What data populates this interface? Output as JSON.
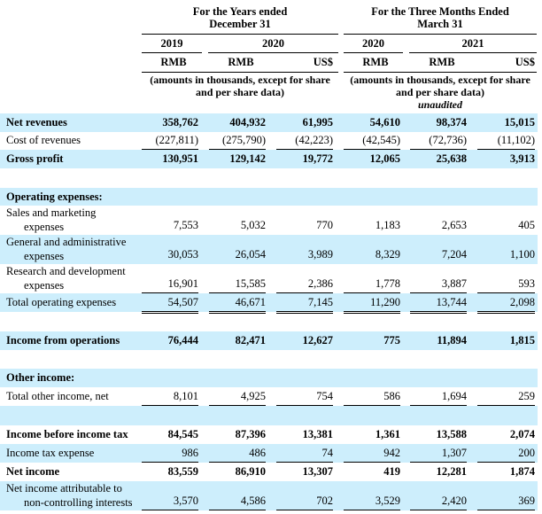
{
  "header": {
    "group_years": "For the Years ended December 31",
    "group_years_l1": "For the Years ended",
    "group_years_l2": "December 31",
    "group_quarter_l1": "For the Three Months Ended",
    "group_quarter_l2": "March 31",
    "years": [
      "2019",
      "2020",
      "2020",
      "2021"
    ],
    "currencies": [
      "RMB",
      "RMB",
      "US$",
      "RMB",
      "RMB",
      "US$"
    ],
    "note_l1": "(amounts in thousands, except for share",
    "note_l2": "and per share data)",
    "unaudited": "unaudited"
  },
  "colors": {
    "band": "#cdeefc"
  },
  "rows": [
    {
      "label": "Net revenues",
      "bold": true,
      "band": true,
      "values": [
        "358,762",
        "404,932",
        "61,995",
        "54,610",
        "98,374",
        "15,015"
      ]
    },
    {
      "label": "Cost of revenues",
      "values": [
        "(227,811)",
        "(275,790)",
        "(42,223)",
        "(42,545)",
        "(72,736)",
        "(11,102)"
      ]
    },
    {
      "label": "Gross profit",
      "bold": true,
      "band": true,
      "values": [
        "130,951",
        "129,142",
        "19,772",
        "12,065",
        "25,638",
        "3,913"
      ]
    },
    {
      "label": "Operating expenses:",
      "bold": true,
      "band": true,
      "values": []
    },
    {
      "label": "Sales and marketing",
      "label2": "expenses",
      "values": [
        "7,553",
        "5,032",
        "770",
        "1,183",
        "2,653",
        "405"
      ]
    },
    {
      "label": "General and administrative",
      "label2": "expenses",
      "band": true,
      "values": [
        "30,053",
        "26,054",
        "3,989",
        "8,329",
        "7,204",
        "1,100"
      ]
    },
    {
      "label": "Research and development",
      "label2": "expenses",
      "values": [
        "16,901",
        "15,585",
        "2,386",
        "1,778",
        "3,887",
        "593"
      ]
    },
    {
      "label": "Total operating expenses",
      "band": true,
      "values": [
        "54,507",
        "46,671",
        "7,145",
        "11,290",
        "13,744",
        "2,098"
      ]
    },
    {
      "label": "Income from operations",
      "bold": true,
      "band": true,
      "values": [
        "76,444",
        "82,471",
        "12,627",
        "775",
        "11,894",
        "1,815"
      ]
    },
    {
      "label": "Other income:",
      "bold": true,
      "band": true,
      "values": []
    },
    {
      "label": "Total other income, net",
      "values": [
        "8,101",
        "4,925",
        "754",
        "586",
        "1,694",
        "259"
      ]
    },
    {
      "label": "Income before income tax",
      "bold": true,
      "values": [
        "84,545",
        "87,396",
        "13,381",
        "1,361",
        "13,588",
        "2,074"
      ]
    },
    {
      "label": "Income tax expense",
      "band": true,
      "values": [
        "986",
        "486",
        "74",
        "942",
        "1,307",
        "200"
      ]
    },
    {
      "label": "Net income",
      "bold": true,
      "values": [
        "83,559",
        "86,910",
        "13,307",
        "419",
        "12,281",
        "1,874"
      ]
    },
    {
      "label": "Net income attributable to",
      "label2": "non-controlling interests",
      "band": true,
      "values": [
        "3,570",
        "4,586",
        "702",
        "3,529",
        "2,420",
        "369"
      ]
    }
  ]
}
